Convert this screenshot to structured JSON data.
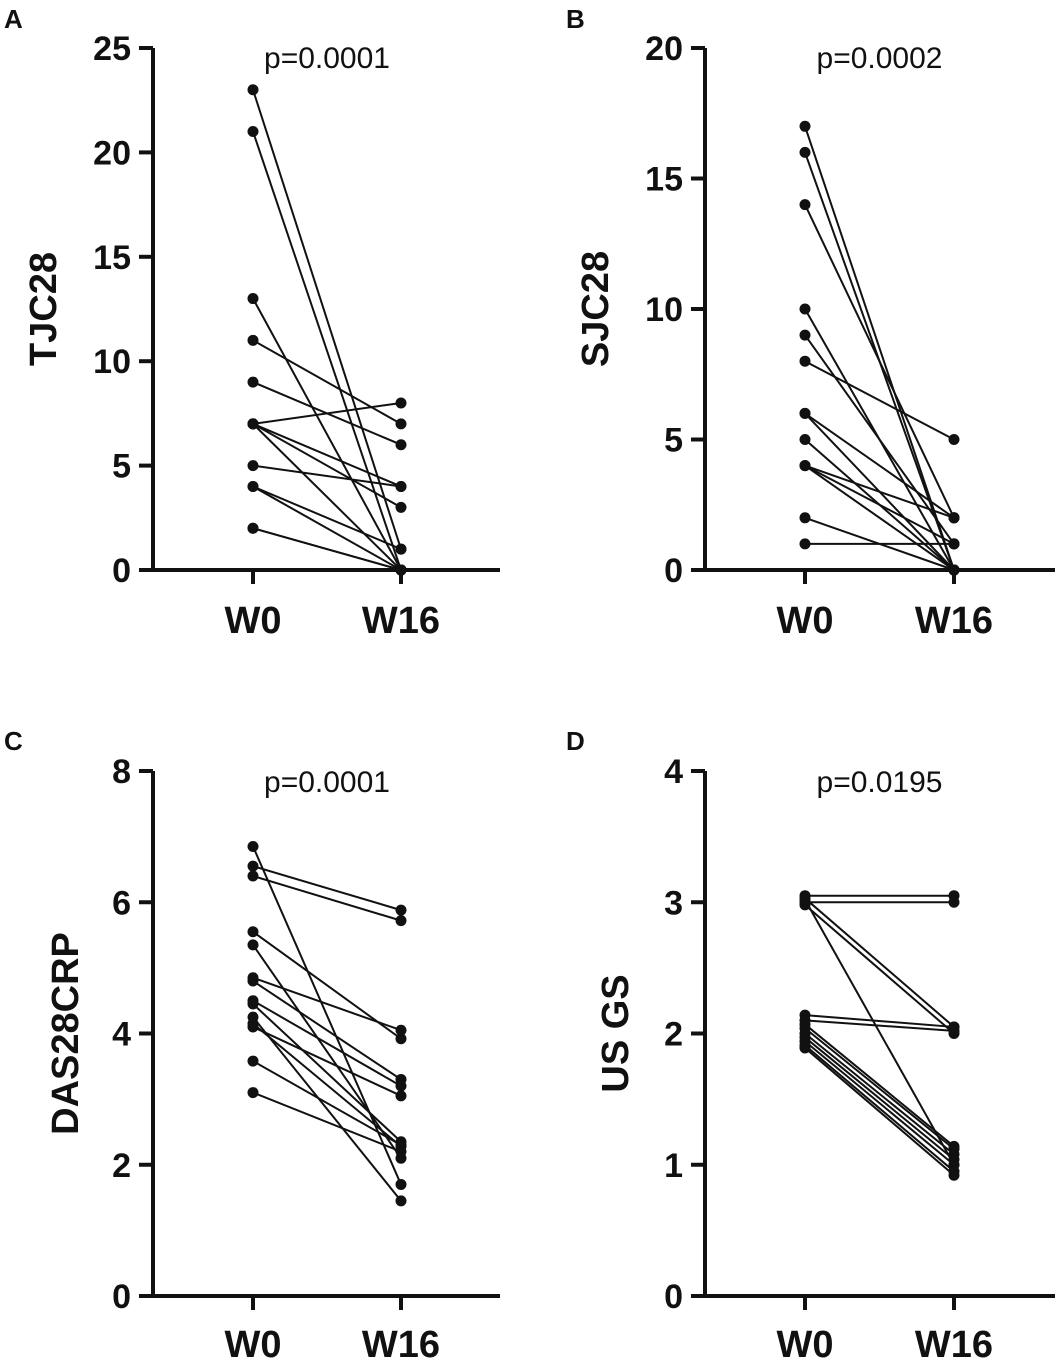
{
  "chart_data": [
    {
      "panel": "A",
      "type": "line",
      "title": "p=0.0001",
      "ylabel": "TJC28",
      "categories": [
        "W0",
        "W16"
      ],
      "ylim": [
        0,
        25
      ],
      "yticks": [
        0,
        5,
        10,
        15,
        20,
        25
      ],
      "pairs": [
        [
          23,
          1
        ],
        [
          21,
          0
        ],
        [
          13,
          0
        ],
        [
          11,
          7
        ],
        [
          9,
          6
        ],
        [
          7,
          8
        ],
        [
          7,
          4
        ],
        [
          7,
          3
        ],
        [
          7,
          0
        ],
        [
          5,
          4
        ],
        [
          4,
          1
        ],
        [
          4,
          0
        ],
        [
          2,
          0
        ],
        [
          2,
          0
        ]
      ]
    },
    {
      "panel": "B",
      "type": "line",
      "title": "p=0.0002",
      "ylabel": "SJC28",
      "categories": [
        "W0",
        "W16"
      ],
      "ylim": [
        0,
        20
      ],
      "yticks": [
        0,
        5,
        10,
        15,
        20
      ],
      "pairs": [
        [
          17,
          0
        ],
        [
          16,
          0
        ],
        [
          14,
          2
        ],
        [
          10,
          0
        ],
        [
          9,
          1
        ],
        [
          8,
          5
        ],
        [
          6,
          2
        ],
        [
          6,
          0
        ],
        [
          5,
          0
        ],
        [
          4,
          2
        ],
        [
          4,
          1
        ],
        [
          4,
          0
        ],
        [
          2,
          0
        ],
        [
          1,
          1
        ]
      ]
    },
    {
      "panel": "C",
      "type": "line",
      "title": "p=0.0001",
      "ylabel": "DAS28CRP",
      "categories": [
        "W0",
        "W16"
      ],
      "ylim": [
        0,
        8
      ],
      "yticks": [
        0,
        2,
        4,
        6,
        8
      ],
      "pairs": [
        [
          6.85,
          1.7
        ],
        [
          6.55,
          5.88
        ],
        [
          6.4,
          5.72
        ],
        [
          5.55,
          3.92
        ],
        [
          5.35,
          2.1
        ],
        [
          4.85,
          4.05
        ],
        [
          4.8,
          3.3
        ],
        [
          4.5,
          3.2
        ],
        [
          4.45,
          2.35
        ],
        [
          4.25,
          1.45
        ],
        [
          4.1,
          3.05
        ],
        [
          4.15,
          2.28
        ],
        [
          3.58,
          2.3
        ],
        [
          3.1,
          2.2
        ]
      ]
    },
    {
      "panel": "D",
      "type": "line",
      "title": "p=0.0195",
      "ylabel": "US GS",
      "categories": [
        "W0",
        "W16"
      ],
      "ylim": [
        0,
        4
      ],
      "yticks": [
        0,
        1,
        2,
        3,
        4
      ],
      "pairs": [
        [
          3.05,
          3.05
        ],
        [
          3.0,
          3.0
        ],
        [
          3.03,
          2.05
        ],
        [
          2.98,
          2.0
        ],
        [
          3.02,
          1.0
        ],
        [
          2.14,
          2.05
        ],
        [
          2.1,
          2.02
        ],
        [
          2.07,
          1.14
        ],
        [
          2.04,
          1.12
        ],
        [
          2.0,
          1.08
        ],
        [
          1.97,
          1.04
        ],
        [
          1.94,
          1.0
        ],
        [
          1.91,
          0.95
        ],
        [
          1.89,
          0.92
        ]
      ]
    }
  ]
}
